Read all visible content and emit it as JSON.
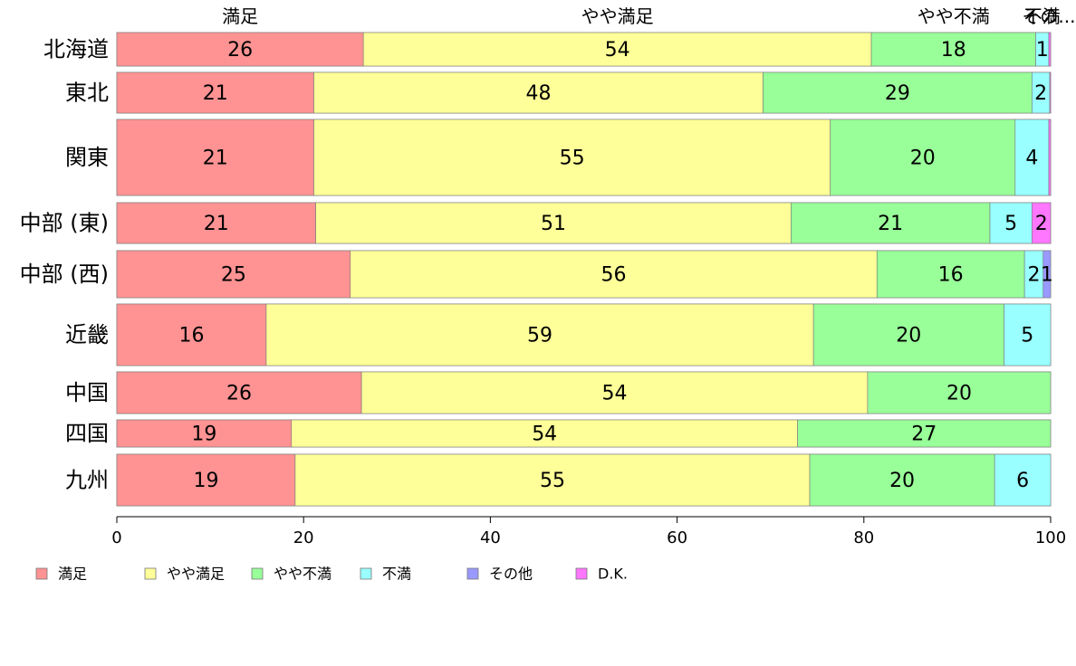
{
  "chart_data": {
    "type": "bar",
    "orientation": "horizontal",
    "stacked": true,
    "title": "",
    "xlabel": "",
    "ylabel": "",
    "xlim": [
      0,
      100
    ],
    "xticks": [
      "0",
      "20",
      "40",
      "60",
      "80",
      "100"
    ],
    "top_labels": [
      "満足",
      "やや満足",
      "やや不満",
      "不満",
      "その..."
    ],
    "legend_position": "bottom",
    "categories": [
      "北海道",
      "東北",
      "関東",
      "中部 (東)",
      "中部 (西)",
      "近畿",
      "中国",
      "四国",
      "九州"
    ],
    "series": [
      {
        "name": "満足",
        "color": "#ff9393",
        "values": [
          26.4,
          21.1,
          21.1,
          21.3,
          25.0,
          16.0,
          26.2,
          18.7,
          19.1
        ]
      },
      {
        "name": "やや満足",
        "color": "#ffff99",
        "values": [
          54.4,
          48.1,
          55.3,
          50.9,
          56.4,
          58.6,
          54.2,
          54.2,
          55.1
        ]
      },
      {
        "name": "やや不満",
        "color": "#99ff99",
        "values": [
          17.6,
          28.8,
          19.8,
          21.3,
          15.8,
          20.4,
          19.6,
          27.1,
          19.8
        ]
      },
      {
        "name": "不満",
        "color": "#99ffff",
        "values": [
          1.4,
          1.9,
          3.6,
          4.5,
          2.0,
          5.0,
          0.0,
          0.0,
          6.0
        ]
      },
      {
        "name": "その他",
        "color": "#9999ff",
        "values": [
          0.0,
          0.0,
          0.0,
          0.0,
          0.8,
          0.0,
          0.0,
          0.0,
          0.0
        ]
      },
      {
        "name": "D.K.",
        "color": "#ff77ff",
        "values": [
          0.2,
          0.1,
          0.2,
          2.0,
          0.0,
          0.0,
          0.0,
          0.0,
          0.0
        ]
      }
    ]
  }
}
